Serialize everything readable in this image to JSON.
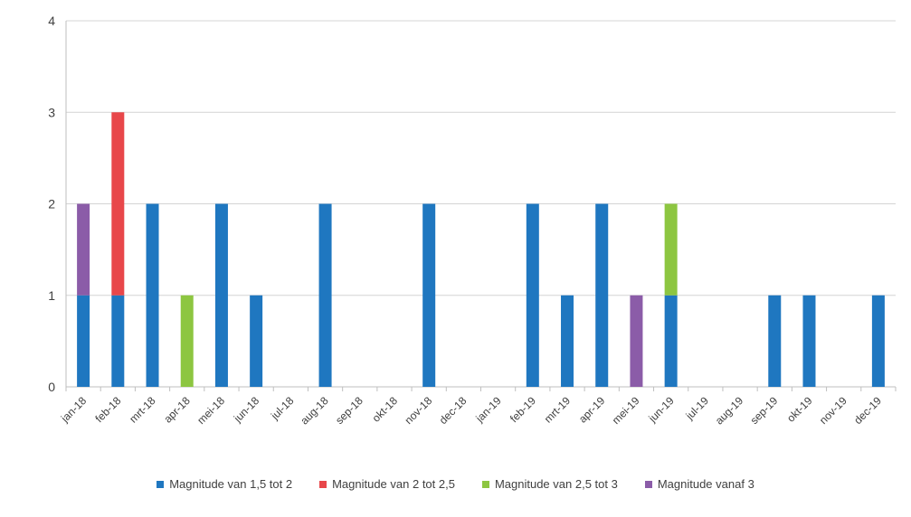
{
  "chart_data": {
    "type": "bar",
    "stacked": true,
    "categories": [
      "jan-18",
      "feb-18",
      "mrt-18",
      "apr-18",
      "mei-18",
      "jun-18",
      "jul-18",
      "aug-18",
      "sep-18",
      "okt-18",
      "nov-18",
      "dec-18",
      "jan-19",
      "feb-19",
      "mrt-19",
      "apr-19",
      "mei-19",
      "jun-19",
      "jul-19",
      "aug-19",
      "sep-19",
      "okt-19",
      "nov-19",
      "dec-19"
    ],
    "series": [
      {
        "name": "Magnitude van 1,5 tot 2",
        "color": "#1f77c0",
        "values": [
          1,
          1,
          2,
          0,
          2,
          1,
          0,
          2,
          0,
          0,
          2,
          0,
          0,
          2,
          1,
          2,
          0,
          1,
          0,
          0,
          1,
          1,
          0,
          1
        ]
      },
      {
        "name": "Magnitude van 2 tot 2,5",
        "color": "#e8474a",
        "values": [
          0,
          2,
          0,
          0,
          0,
          0,
          0,
          0,
          0,
          0,
          0,
          0,
          0,
          0,
          0,
          0,
          0,
          0,
          0,
          0,
          0,
          0,
          0,
          0
        ]
      },
      {
        "name": "Magnitude van 2,5 tot 3",
        "color": "#8dc641",
        "values": [
          0,
          0,
          0,
          1,
          0,
          0,
          0,
          0,
          0,
          0,
          0,
          0,
          0,
          0,
          0,
          0,
          0,
          1,
          0,
          0,
          0,
          0,
          0,
          0
        ]
      },
      {
        "name": "Magnitude vanaf 3",
        "color": "#8b5ca8",
        "values": [
          1,
          0,
          0,
          0,
          0,
          0,
          0,
          0,
          0,
          0,
          0,
          0,
          0,
          0,
          0,
          0,
          1,
          0,
          0,
          0,
          0,
          0,
          0,
          0
        ]
      }
    ],
    "yticks": [
      "0",
      "1",
      "2",
      "3",
      "4"
    ],
    "ylim": [
      0,
      4
    ],
    "grid": true,
    "legend": "bottom"
  }
}
